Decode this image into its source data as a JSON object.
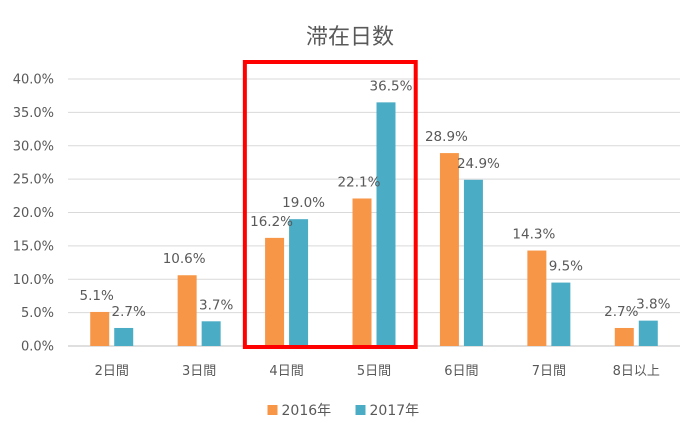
{
  "chart_data": {
    "type": "bar",
    "title": "滞在日数",
    "xlabel": "",
    "ylabel": "",
    "categories": [
      "2日間",
      "3日間",
      "4日間",
      "5日間",
      "6日間",
      "7日間",
      "8日以上"
    ],
    "series": [
      {
        "name": "2016年",
        "color": "#F79646",
        "values": [
          5.1,
          10.6,
          16.2,
          22.1,
          28.9,
          14.3,
          2.7
        ],
        "labels": [
          "5.1%",
          "10.6%",
          "16.2%",
          "22.1%",
          "28.9%",
          "14.3%",
          "2.7%"
        ]
      },
      {
        "name": "2017年",
        "color": "#4BACC6",
        "values": [
          2.7,
          3.7,
          19.0,
          36.5,
          24.9,
          9.5,
          3.8
        ],
        "labels": [
          "2.7%",
          "3.7%",
          "19.0%",
          "36.5%",
          "24.9%",
          "9.5%",
          "3.8%"
        ]
      }
    ],
    "ylim": [
      0,
      40
    ],
    "yticks": [
      "0.0%",
      "5.0%",
      "10.0%",
      "15.0%",
      "20.0%",
      "25.0%",
      "30.0%",
      "35.0%",
      "40.0%"
    ],
    "grid": true,
    "legend_position": "bottom",
    "highlight": {
      "categories": [
        "4日間",
        "5日間"
      ],
      "color": "#FF0000"
    }
  }
}
